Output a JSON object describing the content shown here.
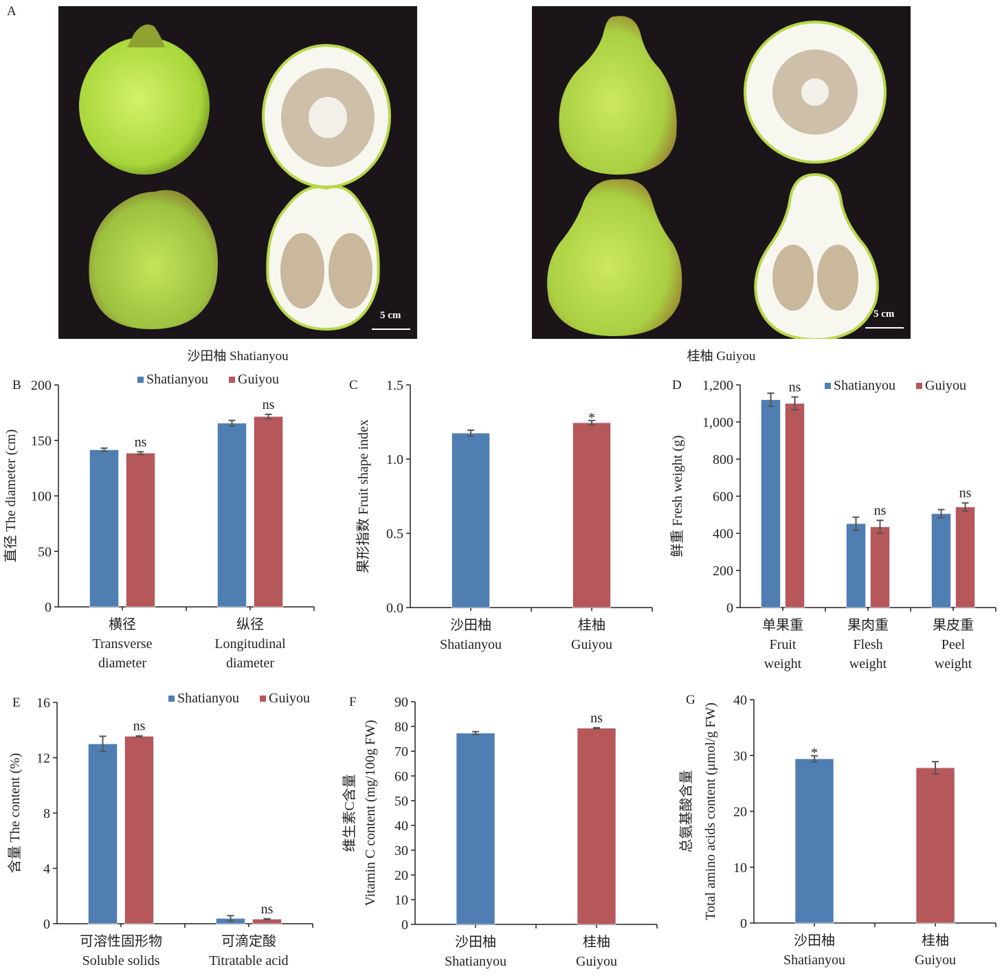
{
  "panel_a": {
    "letter": "A",
    "photos": [
      {
        "caption": "沙田柚 Shatianyou",
        "scale_label": "5 cm"
      },
      {
        "caption": "桂柚 Guiyou",
        "scale_label": "5 cm"
      }
    ]
  },
  "colors": {
    "Shatianyou": "#4f7eb3",
    "Guiyou": "#b6575a",
    "errorbar": "#555555"
  },
  "chart_data": [
    {
      "id": "B",
      "type": "bar",
      "letter": "B",
      "title": "",
      "ylabel": "直径  The diameter (cm)",
      "xlabel": "",
      "ylim": [
        0,
        200
      ],
      "yticks": [
        0,
        50,
        100,
        150,
        200
      ],
      "ytick_labels": [
        "0",
        "50",
        "100",
        "150",
        "200"
      ],
      "categories": [
        [
          "横径",
          "Transverse",
          "diameter"
        ],
        [
          "纵径",
          "Longitudinal",
          "diameter"
        ]
      ],
      "legend": [
        "Shatianyou",
        "Guiyou"
      ],
      "legend_position": "top-right",
      "series": [
        {
          "name": "Shatianyou",
          "values": [
            141.5,
            165.5
          ],
          "errors": [
            1.5,
            2.5
          ]
        },
        {
          "name": "Guiyou",
          "values": [
            138.5,
            171.5
          ],
          "errors": [
            1.2,
            2.0
          ]
        }
      ],
      "annotations": [
        {
          "category": 0,
          "series": 1,
          "text": "ns"
        },
        {
          "category": 1,
          "series": 1,
          "text": "ns"
        }
      ]
    },
    {
      "id": "C",
      "type": "bar",
      "letter": "C",
      "title": "",
      "ylabel": "果形指数  Fruit shape index",
      "xlabel": "",
      "ylim": [
        0,
        1.5
      ],
      "yticks": [
        0,
        0.5,
        1.0,
        1.5
      ],
      "ytick_labels": [
        "0.0",
        "0.5",
        "1.0",
        "1.5"
      ],
      "categories": [
        [
          "沙田柚",
          "Shatianyou"
        ],
        [
          "桂柚",
          "Guiyou"
        ]
      ],
      "legend": [],
      "single_series_colored": true,
      "series": [
        {
          "name": "Value",
          "values": [
            1.175,
            1.245
          ],
          "errors": [
            0.02,
            0.015
          ]
        }
      ],
      "annotations": [
        {
          "category": 1,
          "series": 0,
          "text": "*"
        }
      ]
    },
    {
      "id": "D",
      "type": "bar",
      "letter": "D",
      "title": "",
      "ylabel": "鲜重  Fresh weight (g)",
      "xlabel": "",
      "ylim": [
        0,
        1200
      ],
      "yticks": [
        0,
        200,
        400,
        600,
        800,
        1000,
        1200
      ],
      "ytick_labels": [
        "0",
        "200",
        "400",
        "600",
        "800",
        "1,000",
        "1,200"
      ],
      "categories": [
        [
          "单果重",
          "Fruit",
          "weight"
        ],
        [
          "果肉重",
          "Flesh",
          "weight"
        ],
        [
          "果皮重",
          "Peel",
          "weight"
        ]
      ],
      "legend": [
        "Shatianyou",
        "Guiyou"
      ],
      "legend_position": "top-right",
      "series": [
        {
          "name": "Shatianyou",
          "values": [
            1120,
            452,
            506
          ],
          "errors": [
            35,
            35,
            22
          ]
        },
        {
          "name": "Guiyou",
          "values": [
            1100,
            435,
            542
          ],
          "errors": [
            35,
            35,
            22
          ]
        }
      ],
      "annotations": [
        {
          "category": 0,
          "series": 1,
          "text": "ns",
          "offset": "above-left"
        },
        {
          "category": 1,
          "series": 1,
          "text": "ns"
        },
        {
          "category": 2,
          "series": 1,
          "text": "ns"
        }
      ]
    },
    {
      "id": "E",
      "type": "bar",
      "letter": "E",
      "title": "",
      "ylabel": "含量  The content (%)",
      "xlabel": "",
      "ylim": [
        0,
        16
      ],
      "yticks": [
        0,
        4,
        8,
        12,
        16
      ],
      "ytick_labels": [
        "0",
        "4",
        "8",
        "12",
        "16"
      ],
      "categories": [
        [
          "可溶性固形物",
          "Soluble solids"
        ],
        [
          "可滴定酸",
          "Titratable acid"
        ]
      ],
      "legend": [
        "Shatianyou",
        "Guiyou"
      ],
      "legend_position": "top-right",
      "series": [
        {
          "name": "Shatianyou",
          "values": [
            13.0,
            0.38
          ],
          "errors": [
            0.55,
            0.2
          ]
        },
        {
          "name": "Guiyou",
          "values": [
            13.55,
            0.33
          ],
          "errors": [
            0.03,
            0.03
          ]
        }
      ],
      "annotations": [
        {
          "category": 0,
          "series": 1,
          "text": "ns"
        },
        {
          "category": 1,
          "series": 1,
          "text": "ns"
        }
      ]
    },
    {
      "id": "F",
      "type": "bar",
      "letter": "F",
      "title": "",
      "ylabel": "维生素C含量",
      "ylabel2": "Vitamin C content (mg/100g FW)",
      "xlabel": "",
      "ylim": [
        0,
        90
      ],
      "yticks": [
        0,
        10,
        20,
        30,
        40,
        50,
        60,
        70,
        80,
        90
      ],
      "ytick_labels": [
        "0",
        "10",
        "20",
        "30",
        "40",
        "50",
        "60",
        "70",
        "80",
        "90"
      ],
      "categories": [
        [
          "沙田柚",
          "Shatianyou"
        ],
        [
          "桂柚",
          "Guiyou"
        ]
      ],
      "legend": [],
      "single_series_colored": true,
      "series": [
        {
          "name": "Value",
          "values": [
            77.3,
            79.3
          ],
          "errors": [
            0.6,
            0.2
          ]
        }
      ],
      "annotations": [
        {
          "category": 1,
          "series": 0,
          "text": "ns"
        }
      ]
    },
    {
      "id": "G",
      "type": "bar",
      "letter": "G",
      "title": "",
      "ylabel": "总氨基酸含量",
      "ylabel2": "Total amino acids content (μmol/g FW)",
      "xlabel": "",
      "ylim": [
        0,
        40
      ],
      "yticks": [
        0,
        10,
        20,
        30,
        40
      ],
      "ytick_labels": [
        "0",
        "10",
        "20",
        "30",
        "40"
      ],
      "categories": [
        [
          "沙田柚",
          "Shatianyou"
        ],
        [
          "桂柚",
          "Guiyou"
        ]
      ],
      "legend": [],
      "single_series_colored": true,
      "series": [
        {
          "name": "Value",
          "values": [
            29.4,
            27.8
          ],
          "errors": [
            0.55,
            1.1
          ]
        }
      ],
      "annotations": [
        {
          "category": 0,
          "series": 0,
          "text": "*"
        }
      ]
    }
  ]
}
